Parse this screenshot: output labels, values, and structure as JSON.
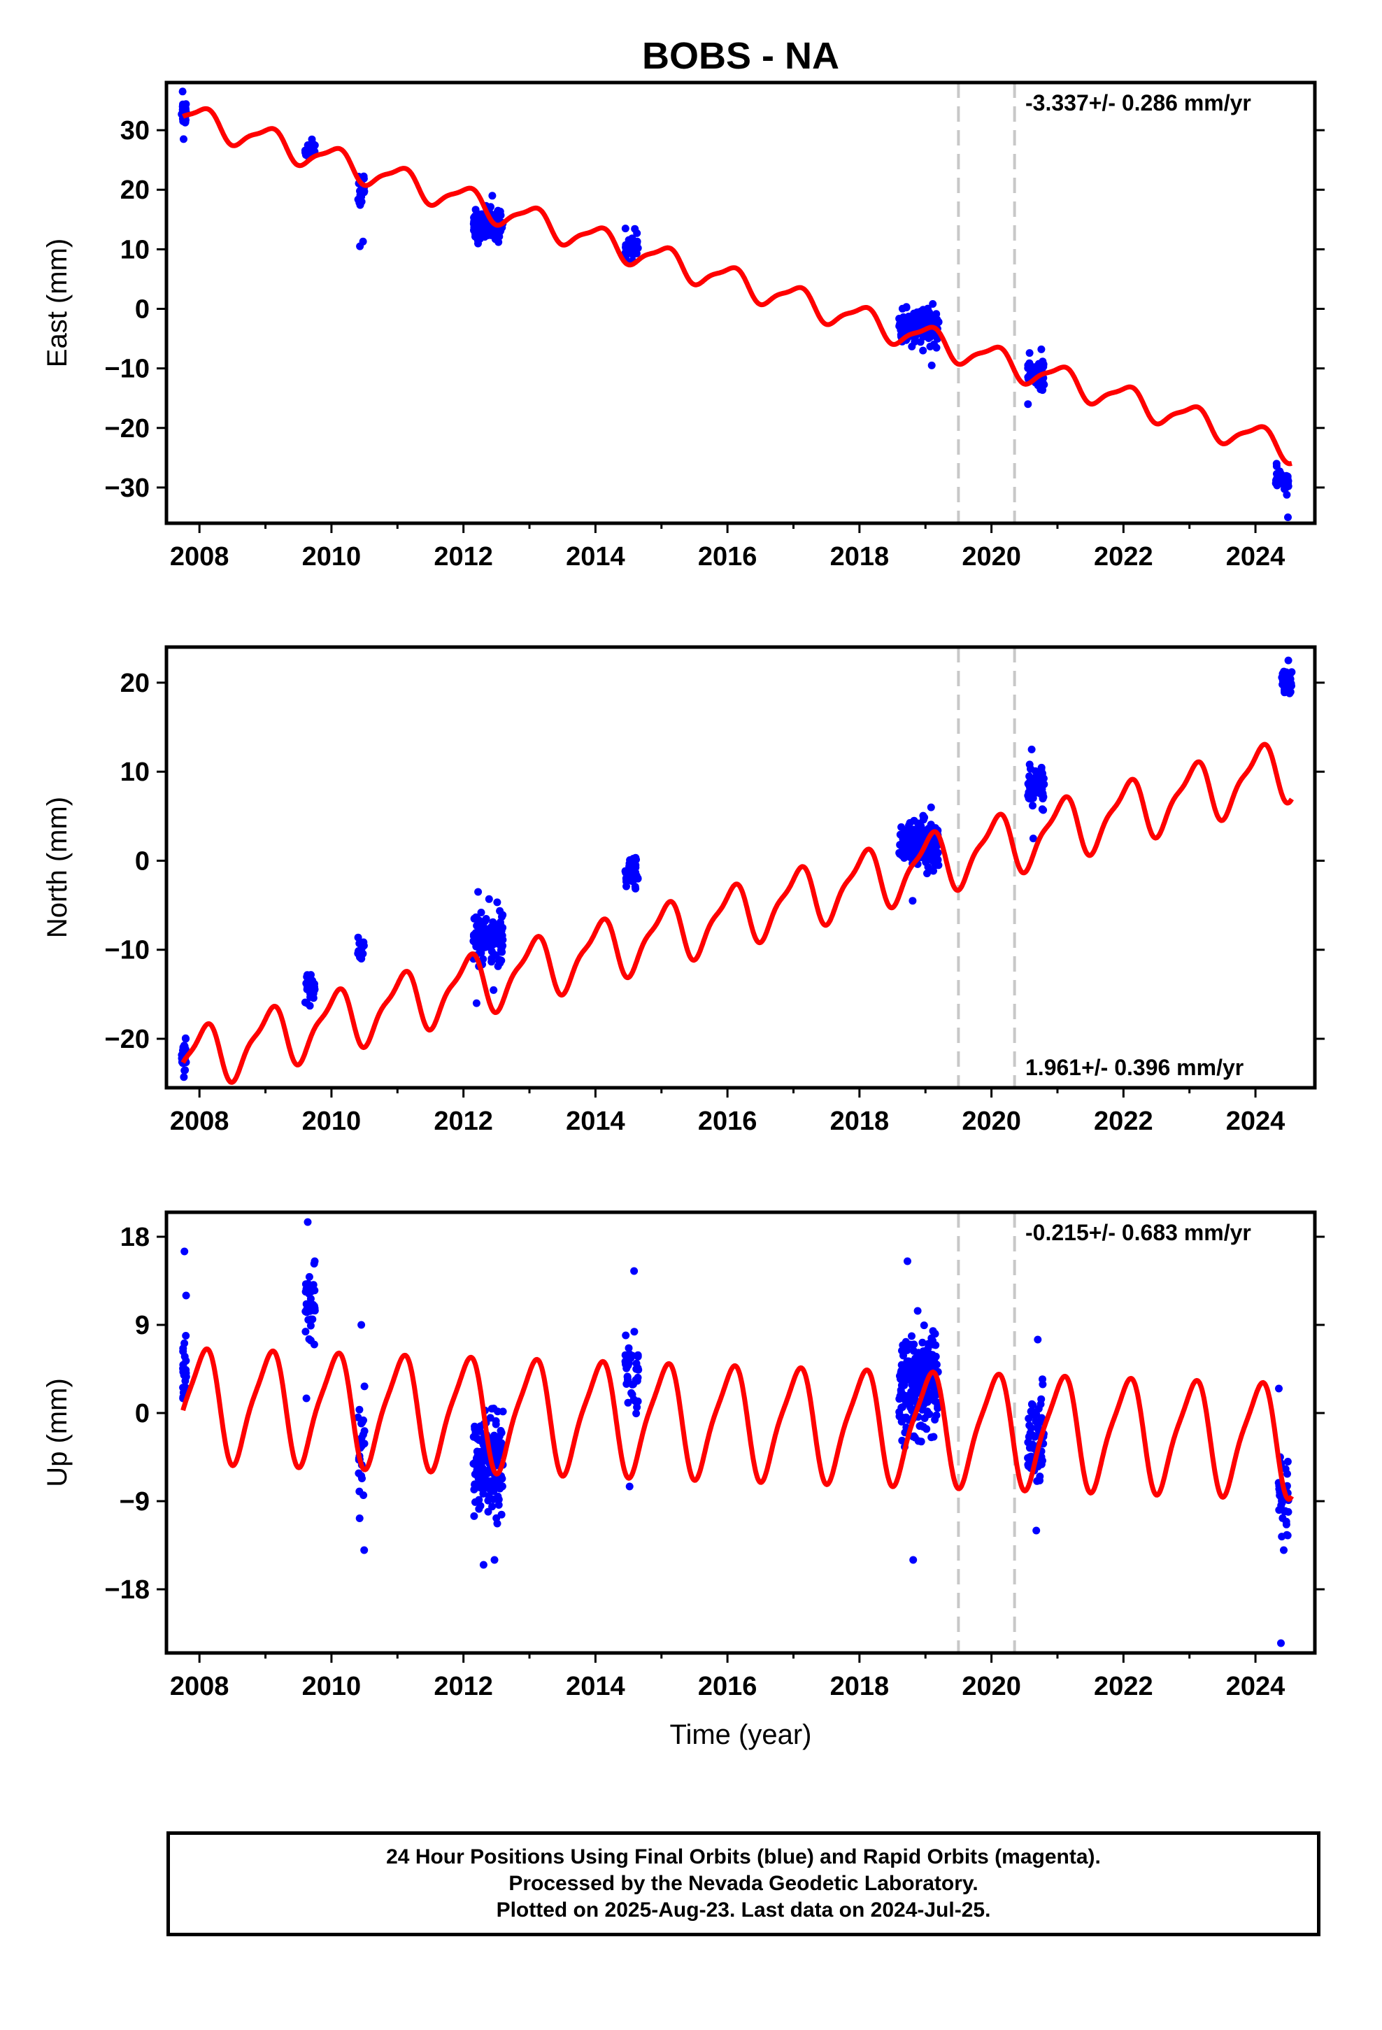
{
  "chart_data": [
    {
      "type": "scatter",
      "title": "BOBS - NA",
      "xlabel": "",
      "ylabel": "East (mm)",
      "xlim": [
        2007.5,
        2024.9
      ],
      "ylim": [
        -36,
        38
      ],
      "xticks": [
        2008,
        2010,
        2012,
        2014,
        2016,
        2018,
        2020,
        2022,
        2024
      ],
      "yticks": [
        30,
        20,
        10,
        0,
        -10,
        -20,
        -30
      ],
      "ytick_labels": [
        "30",
        "20",
        "10",
        "0",
        "−10",
        "−20",
        "−30"
      ],
      "rate_label": "-3.337+/- 0.286 mm/yr",
      "rate_position": "top-right",
      "equipment_change_epochs": [
        2019.5,
        2020.35
      ],
      "model": {
        "intercept": 32.5,
        "rate": -3.337,
        "annual_amplitude": 2.2,
        "semiannual_amplitude": 0.6
      },
      "series": [
        {
          "name": "Final Orbits",
          "color": "#0000ff",
          "kind": "points",
          "segments": [
            {
              "t": [
                2007.73,
                2007.8
              ],
              "center": 33,
              "spread": 1.8,
              "n": 22,
              "outliers": [
                28.5,
                36.5
              ]
            },
            {
              "t": [
                2009.6,
                2009.75
              ],
              "center": 27,
              "spread": 1.2,
              "n": 28,
              "outliers": []
            },
            {
              "t": [
                2010.4,
                2010.5
              ],
              "center": 20,
              "spread": 2.5,
              "n": 26,
              "outliers": [
                10.5,
                11.3
              ]
            },
            {
              "t": [
                2012.15,
                2012.6
              ],
              "center": 14,
              "spread": 2.2,
              "n": 150,
              "outliers": [
                19
              ]
            },
            {
              "t": [
                2014.45,
                2014.65
              ],
              "center": 10,
              "spread": 1.5,
              "n": 40,
              "outliers": [
                13.5
              ]
            },
            {
              "t": [
                2018.6,
                2019.2
              ],
              "center": -3,
              "spread": 2.3,
              "n": 200,
              "outliers": [
                -9.5
              ]
            },
            {
              "t": [
                2020.55,
                2020.8
              ],
              "center": -11,
              "spread": 2.0,
              "n": 60,
              "outliers": [
                -16,
                -6.8
              ]
            },
            {
              "t": [
                2024.3,
                2024.5
              ],
              "center": -29,
              "spread": 1.4,
              "n": 35,
              "outliers": [
                -35,
                -26
              ]
            }
          ]
        },
        {
          "name": "Rapid Orbits",
          "color": "#ff00ff",
          "kind": "points",
          "segments": []
        }
      ]
    },
    {
      "type": "scatter",
      "title": "",
      "xlabel": "",
      "ylabel": "North (mm)",
      "xlim": [
        2007.5,
        2024.9
      ],
      "ylim": [
        -25.5,
        24
      ],
      "xticks": [
        2008,
        2010,
        2012,
        2014,
        2016,
        2018,
        2020,
        2022,
        2024
      ],
      "yticks": [
        20,
        10,
        0,
        -10,
        -20
      ],
      "ytick_labels": [
        "20",
        "10",
        "0",
        "−10",
        "−20"
      ],
      "rate_label": "1.961+/- 0.396 mm/yr",
      "rate_position": "bottom-right",
      "equipment_change_epochs": [
        2019.5,
        2020.35
      ],
      "model": {
        "intercept": -22.5,
        "rate": 1.961,
        "annual_amplitude": 3.2,
        "semiannual_amplitude": 1.0
      },
      "series": [
        {
          "name": "Final Orbits",
          "color": "#0000ff",
          "kind": "points",
          "segments": [
            {
              "t": [
                2007.73,
                2007.8
              ],
              "center": -22,
              "spread": 1.4,
              "n": 22,
              "outliers": [
                -24.3,
                -20
              ]
            },
            {
              "t": [
                2009.6,
                2009.75
              ],
              "center": -14,
              "spread": 1.5,
              "n": 25,
              "outliers": []
            },
            {
              "t": [
                2010.4,
                2010.5
              ],
              "center": -10,
              "spread": 1.2,
              "n": 20,
              "outliers": []
            },
            {
              "t": [
                2012.15,
                2012.6
              ],
              "center": -8.5,
              "spread": 2.5,
              "n": 120,
              "outliers": [
                -16,
                -3.5
              ]
            },
            {
              "t": [
                2014.45,
                2014.65
              ],
              "center": -1.5,
              "spread": 1.3,
              "n": 40,
              "outliers": []
            },
            {
              "t": [
                2018.6,
                2019.2
              ],
              "center": 2,
              "spread": 2.0,
              "n": 200,
              "outliers": [
                -4.5,
                6
              ]
            },
            {
              "t": [
                2020.55,
                2020.8
              ],
              "center": 8,
              "spread": 2.0,
              "n": 60,
              "outliers": [
                2.5,
                12.5
              ]
            },
            {
              "t": [
                2024.4,
                2024.55
              ],
              "center": 20,
              "spread": 1.2,
              "n": 35,
              "outliers": [
                22.5
              ]
            }
          ]
        },
        {
          "name": "Rapid Orbits",
          "color": "#ff00ff",
          "kind": "points",
          "segments": []
        }
      ]
    },
    {
      "type": "scatter",
      "title": "",
      "xlabel": "Time (year)",
      "ylabel": "Up (mm)",
      "xlim": [
        2007.5,
        2024.9
      ],
      "ylim": [
        -24.5,
        20.5
      ],
      "xticks": [
        2008,
        2010,
        2012,
        2014,
        2016,
        2018,
        2020,
        2022,
        2024
      ],
      "yticks": [
        18,
        9,
        0,
        -9,
        -18
      ],
      "ytick_labels": [
        "18",
        "9",
        "0",
        "−9",
        "−18"
      ],
      "rate_label": "-0.215+/- 0.683 mm/yr",
      "rate_position": "top-right",
      "equipment_change_epochs": [
        2019.5,
        2020.35
      ],
      "model": {
        "intercept": 1.0,
        "rate": -0.215,
        "annual_amplitude": 5.5,
        "semiannual_amplitude": 1.2
      },
      "series": [
        {
          "name": "Final Orbits",
          "color": "#0000ff",
          "kind": "points",
          "segments": [
            {
              "t": [
                2007.73,
                2007.8
              ],
              "center": 5,
              "spread": 2.5,
              "n": 20,
              "outliers": [
                16.5,
                12,
                1.5
              ]
            },
            {
              "t": [
                2009.6,
                2009.75
              ],
              "center": 11,
              "spread": 3.5,
              "n": 35,
              "outliers": [
                19.5,
                1.5
              ]
            },
            {
              "t": [
                2010.4,
                2010.5
              ],
              "center": -3,
              "spread": 4.0,
              "n": 25,
              "outliers": [
                9,
                -14
              ]
            },
            {
              "t": [
                2012.15,
                2012.6
              ],
              "center": -5,
              "spread": 4.0,
              "n": 160,
              "outliers": [
                -15.5,
                -15
              ]
            },
            {
              "t": [
                2014.45,
                2014.65
              ],
              "center": 4,
              "spread": 4.0,
              "n": 40,
              "outliers": [
                14.5,
                -7.5
              ]
            },
            {
              "t": [
                2018.6,
                2019.2
              ],
              "center": 3,
              "spread": 4.5,
              "n": 220,
              "outliers": [
                15.5,
                -15
              ]
            },
            {
              "t": [
                2020.55,
                2020.8
              ],
              "center": -2,
              "spread": 3.5,
              "n": 70,
              "outliers": [
                7.5,
                -12
              ]
            },
            {
              "t": [
                2024.35,
                2024.5
              ],
              "center": -8,
              "spread": 3.0,
              "n": 35,
              "outliers": [
                -23.5,
                2.5,
                -14
              ]
            }
          ]
        },
        {
          "name": "Rapid Orbits",
          "color": "#ff00ff",
          "kind": "points",
          "segments": []
        }
      ]
    }
  ],
  "colors": {
    "points": "#0000ff",
    "model": "#ff0000",
    "epoch_lines": "#c8c8c8",
    "frame": "#000000"
  },
  "footer": {
    "line1": "24 Hour Positions Using Final Orbits (blue) and Rapid Orbits (magenta).",
    "line2": "Processed by the Nevada Geodetic Laboratory.",
    "line3": "Plotted on 2025-Aug-23. Last data on 2024-Jul-25."
  }
}
